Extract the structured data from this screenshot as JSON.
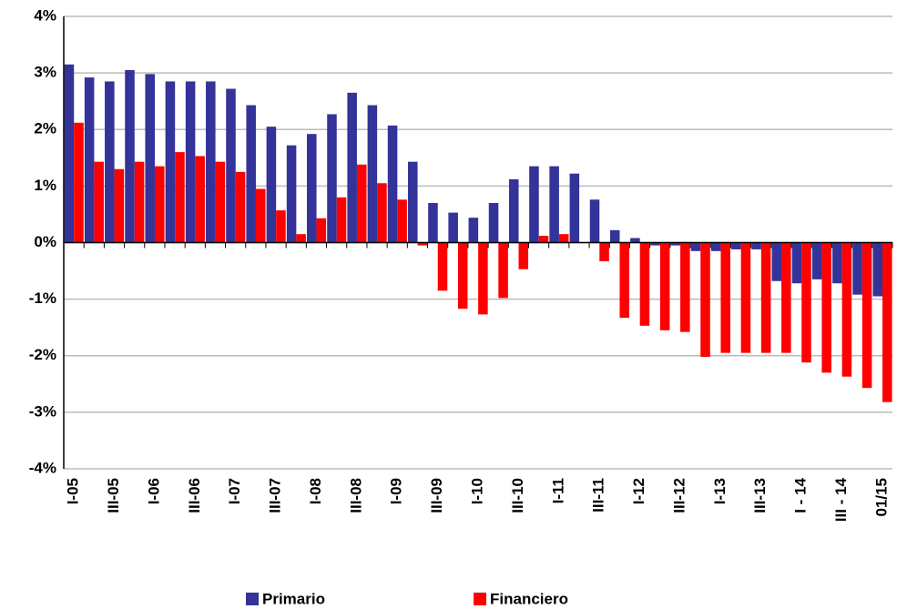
{
  "chart_data": {
    "type": "bar",
    "categories": [
      "I-05",
      null,
      "III-05",
      null,
      "I-06",
      null,
      "III-06",
      null,
      "I-07",
      null,
      "III-07",
      null,
      "I-08",
      null,
      "III-08",
      null,
      "I-09",
      null,
      "III-09",
      null,
      "I-10",
      null,
      "III-10",
      null,
      "I-11",
      null,
      "III-11",
      null,
      "I-12",
      null,
      "III-12",
      null,
      "I-13",
      null,
      "III-13",
      null,
      "I - 14",
      null,
      "III - 14",
      null,
      "01/15"
    ],
    "series": [
      {
        "name": "Primario",
        "color": "#333399",
        "values": [
          3.15,
          2.92,
          2.85,
          3.05,
          2.98,
          2.85,
          2.85,
          2.85,
          2.72,
          2.43,
          2.05,
          1.72,
          1.92,
          2.27,
          2.65,
          2.43,
          2.07,
          1.43,
          0.7,
          0.53,
          0.44,
          0.7,
          1.12,
          1.35,
          1.35,
          1.22,
          0.76,
          0.22,
          0.08,
          -0.05,
          -0.05,
          -0.15,
          -0.15,
          -0.12,
          -0.12,
          -0.68,
          -0.72,
          -0.65,
          -0.72,
          -0.92,
          -0.95
        ]
      },
      {
        "name": "Financiero",
        "color": "#ff0000",
        "values": [
          2.12,
          1.43,
          1.3,
          1.43,
          1.35,
          1.6,
          1.53,
          1.43,
          1.25,
          0.95,
          0.57,
          0.15,
          0.43,
          0.8,
          1.38,
          1.05,
          0.76,
          -0.05,
          -0.85,
          -1.17,
          -1.27,
          -0.98,
          -0.47,
          0.12,
          0.15,
          0,
          -0.33,
          -1.33,
          -1.47,
          -1.55,
          -1.58,
          -2.02,
          -1.95,
          -1.95,
          -1.95,
          -1.95,
          -2.12,
          -2.3,
          -2.37,
          -2.57,
          -2.82
        ]
      }
    ],
    "ylim": [
      -4,
      4
    ],
    "yticks": [
      {
        "value": -4,
        "label": "-4%"
      },
      {
        "value": -3,
        "label": "-3%"
      },
      {
        "value": -2,
        "label": "-2%"
      },
      {
        "value": -1,
        "label": "-1%"
      },
      {
        "value": 0,
        "label": "0%"
      },
      {
        "value": 1,
        "label": "1%"
      },
      {
        "value": 2,
        "label": "2%"
      },
      {
        "value": 3,
        "label": "3%"
      },
      {
        "value": 4,
        "label": "4%"
      }
    ],
    "grid": true,
    "legend": "bottom"
  }
}
